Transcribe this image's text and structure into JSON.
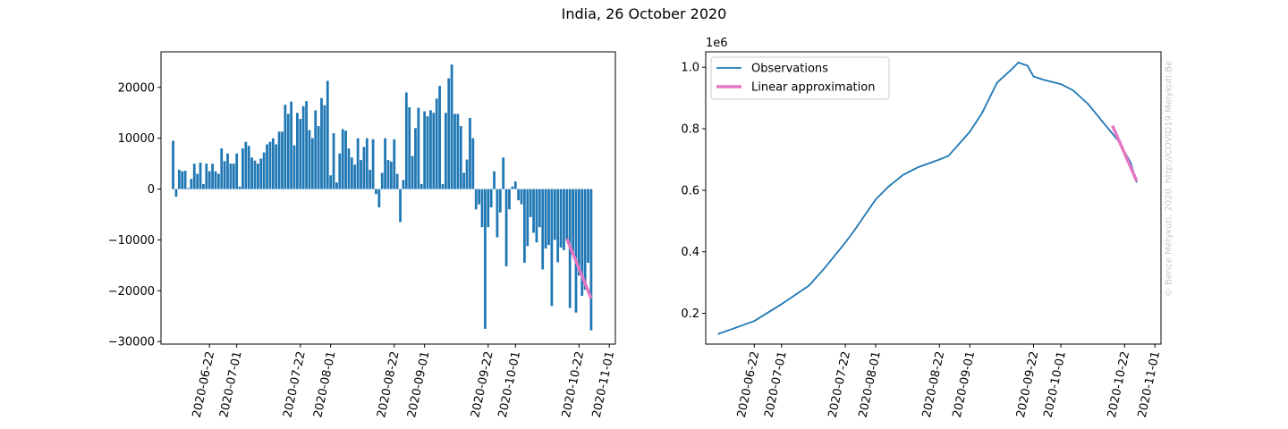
{
  "title": "India, 26 October 2020",
  "watermark": "© Bence Mélykúti, 2020. http://COVID19.Melykuti.Be",
  "chart_data": [
    {
      "type": "bar",
      "title": "",
      "xlabel": "",
      "ylabel": "",
      "x_start": "2020-06-10",
      "x_end": "2020-10-26",
      "ylim": [
        -30500,
        27000
      ],
      "yticks": [
        -30000,
        -20000,
        -10000,
        0,
        10000,
        20000
      ],
      "ytick_labels": [
        "−30000",
        "−20000",
        "−10000",
        "0",
        "10000",
        "20000"
      ],
      "xticks": [
        "2020-06-22",
        "2020-07-01",
        "2020-07-22",
        "2020-08-01",
        "2020-08-22",
        "2020-09-01",
        "2020-09-22",
        "2020-10-01",
        "2020-10-22",
        "2020-11-01"
      ],
      "values": [
        9500,
        -1500,
        3800,
        3500,
        3600,
        200,
        2000,
        5000,
        3000,
        5200,
        1000,
        5000,
        3500,
        5000,
        3500,
        3000,
        8000,
        5500,
        7000,
        5000,
        5000,
        7000,
        500,
        8000,
        9300,
        8500,
        6200,
        5600,
        5000,
        6000,
        7200,
        8800,
        9300,
        10000,
        8800,
        11300,
        11300,
        16600,
        14800,
        17200,
        8600,
        15000,
        13800,
        16300,
        17300,
        11600,
        10000,
        15500,
        12400,
        17900,
        16500,
        21300,
        2700,
        11000,
        1300,
        7000,
        11800,
        11500,
        8000,
        6200,
        4800,
        10000,
        5700,
        8300,
        10000,
        3800,
        9800,
        -1000,
        -3600,
        3200,
        10000,
        5700,
        5400,
        9800,
        3000,
        -6500,
        1800,
        19000,
        16100,
        6500,
        12000,
        16000,
        1000,
        15300,
        14300,
        15500,
        15000,
        17800,
        20300,
        1000,
        15000,
        21800,
        24500,
        14800,
        14800,
        12400,
        3200,
        5800,
        14000,
        10000,
        -4000,
        -3000,
        -7500,
        -27500,
        -7500,
        -3600,
        3500,
        -9500,
        -4600,
        6200,
        -15200,
        -4000,
        500,
        1500,
        -2200,
        -3000,
        -14500,
        -11200,
        -5500,
        -8600,
        -10500,
        -7500,
        -15800,
        -11700,
        -11000,
        -23000,
        -10000,
        -14400,
        -11500,
        -12000,
        -10000,
        -23400,
        -12500,
        -24300,
        -17000,
        -21000,
        -19800,
        -14500,
        -27800
      ],
      "fit": {
        "name": "Linear approximation",
        "x": [
          "2020-10-18",
          "2020-10-26"
        ],
        "y": [
          -9800,
          -21500
        ]
      },
      "colors": {
        "bars": "#1f77b4",
        "fit": "#e377c2"
      }
    },
    {
      "type": "line",
      "title": "",
      "xlabel": "",
      "ylabel": "",
      "offset_label": "1e6",
      "x_start": "2020-06-10",
      "x_end": "2020-10-26",
      "ylim": [
        0.1,
        1.05
      ],
      "yticks": [
        0.2,
        0.4,
        0.6,
        0.8,
        1.0
      ],
      "ytick_labels": [
        "0.2",
        "0.4",
        "0.6",
        "0.8",
        "1.0"
      ],
      "xticks": [
        "2020-06-22",
        "2020-07-01",
        "2020-07-22",
        "2020-08-01",
        "2020-08-22",
        "2020-09-01",
        "2020-09-22",
        "2020-10-01",
        "2020-10-22",
        "2020-11-01"
      ],
      "observations": [
        [
          "2020-06-10",
          0.133
        ],
        [
          "2020-06-15",
          0.15
        ],
        [
          "2020-06-22",
          0.175
        ],
        [
          "2020-07-01",
          0.23
        ],
        [
          "2020-07-10",
          0.29
        ],
        [
          "2020-07-15",
          0.345
        ],
        [
          "2020-07-22",
          0.43
        ],
        [
          "2020-07-25",
          0.47
        ],
        [
          "2020-08-01",
          0.57
        ],
        [
          "2020-08-05",
          0.61
        ],
        [
          "2020-08-10",
          0.65
        ],
        [
          "2020-08-15",
          0.675
        ],
        [
          "2020-08-22",
          0.7
        ],
        [
          "2020-08-25",
          0.712
        ],
        [
          "2020-09-01",
          0.79
        ],
        [
          "2020-09-05",
          0.85
        ],
        [
          "2020-09-10",
          0.95
        ],
        [
          "2020-09-15",
          0.995
        ],
        [
          "2020-09-17",
          1.015
        ],
        [
          "2020-09-20",
          1.005
        ],
        [
          "2020-09-22",
          0.97
        ],
        [
          "2020-09-25",
          0.96
        ],
        [
          "2020-10-01",
          0.945
        ],
        [
          "2020-10-05",
          0.925
        ],
        [
          "2020-10-10",
          0.88
        ],
        [
          "2020-10-15",
          0.82
        ],
        [
          "2020-10-20",
          0.76
        ],
        [
          "2020-10-24",
          0.69
        ],
        [
          "2020-10-26",
          0.625
        ]
      ],
      "fit": {
        "name": "Linear approximation",
        "x": [
          "2020-10-18",
          "2020-10-26"
        ],
        "y": [
          0.81,
          0.63
        ]
      },
      "legend": {
        "position": "upper left",
        "entries": [
          "Observations",
          "Linear approximation"
        ]
      },
      "colors": {
        "observations": "#1f77b4",
        "fit": "#e377c2"
      }
    }
  ]
}
